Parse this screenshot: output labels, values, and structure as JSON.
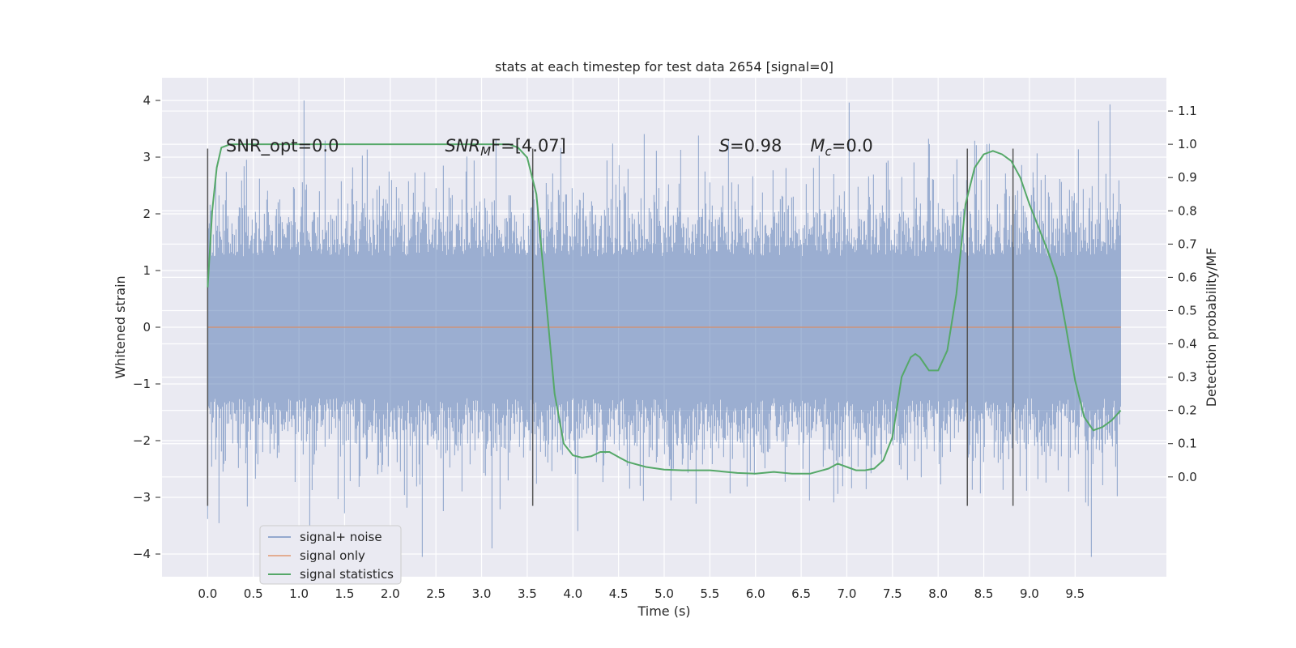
{
  "chart_data": {
    "type": "line",
    "title": "stats at each timestep for test data 2654 [signal=0]",
    "xlabel": "Time (s)",
    "ylabel": "Whitened strain",
    "ylabel_right": "Detection probability/MF",
    "xlim": [
      -0.5,
      10.5
    ],
    "ylim": [
      -4.4,
      4.4
    ],
    "ylim_right": [
      -0.3,
      1.2
    ],
    "xticks": [
      0.0,
      0.5,
      1.0,
      1.5,
      2.0,
      2.5,
      3.0,
      3.5,
      4.0,
      4.5,
      5.0,
      5.5,
      6.0,
      6.5,
      7.0,
      7.5,
      8.0,
      8.5,
      9.0,
      9.5
    ],
    "xtick_labels": [
      "0.0",
      "0.5",
      "1.0",
      "1.5",
      "2.0",
      "2.5",
      "3.0",
      "3.5",
      "4.0",
      "4.5",
      "5.0",
      "5.5",
      "6.0",
      "6.5",
      "7.0",
      "7.5",
      "8.0",
      "8.5",
      "9.0",
      "9.5"
    ],
    "yticks": [
      -4,
      -3,
      -2,
      -1,
      0,
      1,
      2,
      3,
      4
    ],
    "ytick_labels": [
      "−4",
      "−3",
      "−2",
      "−1",
      "0",
      "1",
      "2",
      "3",
      "4"
    ],
    "yticks_right": [
      0.0,
      0.1,
      0.2,
      0.3,
      0.4,
      0.5,
      0.6,
      0.7,
      0.8,
      0.9,
      1.0,
      1.1
    ],
    "ytick_labels_right": [
      "0.0",
      "0.1",
      "0.2",
      "0.3",
      "0.4",
      "0.5",
      "0.6",
      "0.7",
      "0.8",
      "0.9",
      "1.0",
      "1.1"
    ],
    "grid": true,
    "legend_position": "lower-left",
    "series": [
      {
        "name": "signal+ noise",
        "color": "#4c72b0",
        "kind": "noise",
        "x_range": [
          0.0,
          10.0
        ],
        "y_approx_range": [
          -4.05,
          4.0
        ],
        "note_values": "dense whitened noise, about 2000 samples; only the envelope is readable"
      },
      {
        "name": "signal only",
        "color": "#dd8452",
        "x": [
          0.0,
          10.0
        ],
        "y": [
          0.0,
          0.0
        ]
      },
      {
        "name": "signal statistics",
        "color": "#55a868",
        "axis": "right",
        "x": [
          0.0,
          0.05,
          0.1,
          0.15,
          0.25,
          0.5,
          1.0,
          2.0,
          3.0,
          3.3,
          3.4,
          3.5,
          3.6,
          3.7,
          3.8,
          3.9,
          4.0,
          4.1,
          4.2,
          4.3,
          4.4,
          4.5,
          4.6,
          4.8,
          5.0,
          5.2,
          5.5,
          5.8,
          6.0,
          6.2,
          6.4,
          6.6,
          6.8,
          6.9,
          7.0,
          7.1,
          7.2,
          7.3,
          7.4,
          7.5,
          7.6,
          7.7,
          7.75,
          7.8,
          7.9,
          8.0,
          8.1,
          8.2,
          8.3,
          8.4,
          8.5,
          8.6,
          8.7,
          8.8,
          8.9,
          9.0,
          9.2,
          9.3,
          9.4,
          9.5,
          9.6,
          9.7,
          9.8,
          9.9,
          10.0
        ],
        "y": [
          0.57,
          0.8,
          0.93,
          0.99,
          1.0,
          1.0,
          1.0,
          1.0,
          1.0,
          1.0,
          0.99,
          0.96,
          0.85,
          0.55,
          0.25,
          0.1,
          0.065,
          0.058,
          0.062,
          0.075,
          0.075,
          0.06,
          0.045,
          0.03,
          0.022,
          0.02,
          0.02,
          0.012,
          0.01,
          0.015,
          0.01,
          0.01,
          0.025,
          0.04,
          0.03,
          0.02,
          0.02,
          0.025,
          0.05,
          0.12,
          0.3,
          0.36,
          0.37,
          0.36,
          0.32,
          0.32,
          0.38,
          0.55,
          0.82,
          0.93,
          0.97,
          0.98,
          0.97,
          0.95,
          0.9,
          0.82,
          0.68,
          0.6,
          0.45,
          0.29,
          0.18,
          0.14,
          0.15,
          0.17,
          0.2
        ]
      }
    ],
    "vlines": [
      0.0,
      3.56,
      8.32,
      8.82
    ],
    "vline_ylim": [
      -3.15,
      3.15
    ],
    "annotations": [
      {
        "text": "SNR_opt=0.0",
        "x": 0.2,
        "y": 3.1,
        "style": "plain"
      },
      {
        "text": "SNR",
        "sub": "M",
        "rest": "F=[4.07]",
        "x": 2.6,
        "y": 3.1,
        "style": "math"
      },
      {
        "text": "S",
        "sub": "",
        "rest": "=0.98",
        "x": 5.6,
        "y": 3.1,
        "style": "math"
      },
      {
        "text": "M",
        "sub": "c",
        "rest": "=0.0",
        "x": 6.6,
        "y": 3.1,
        "style": "math"
      }
    ]
  }
}
